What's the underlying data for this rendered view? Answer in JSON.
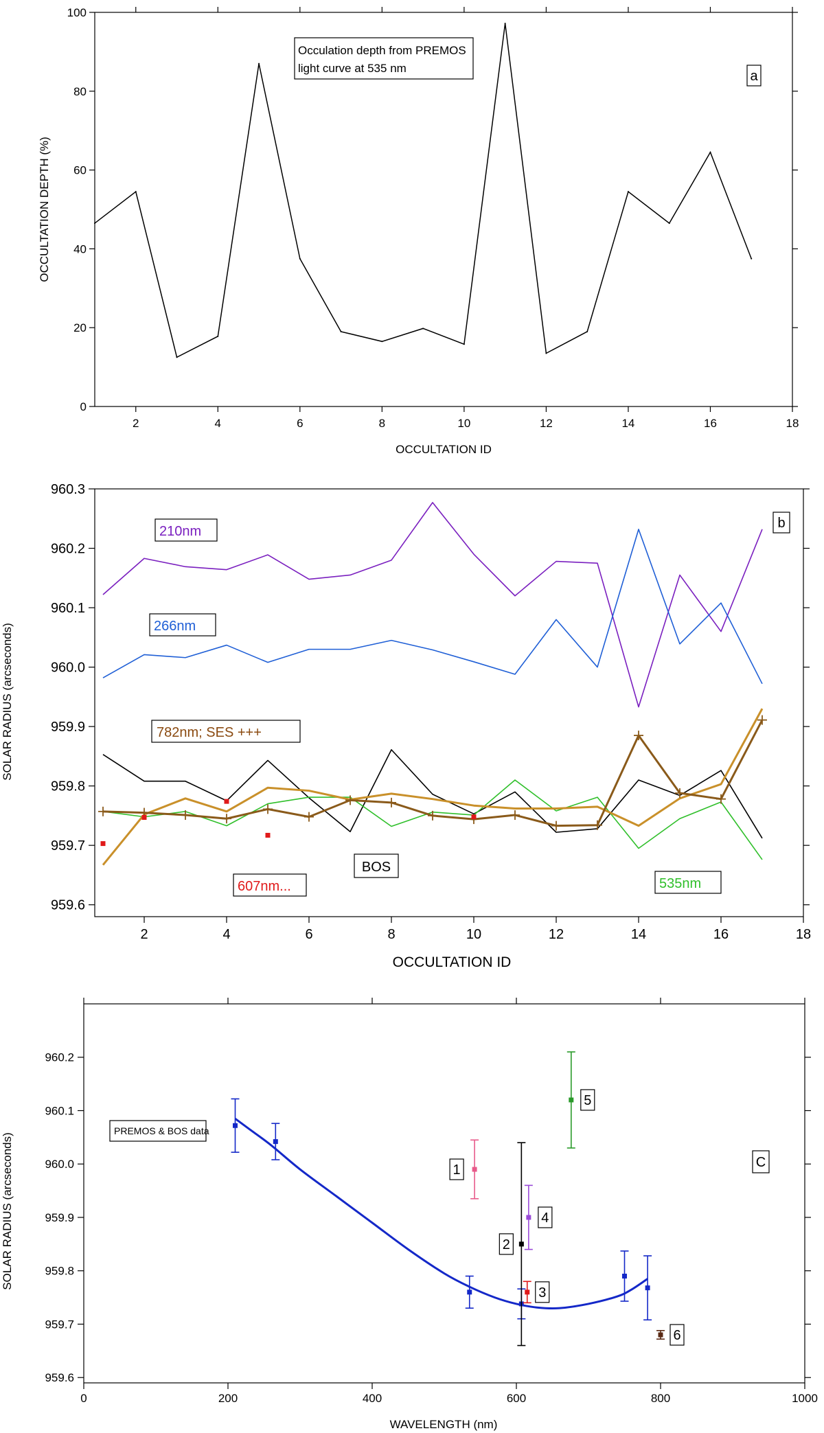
{
  "chart_data": [
    {
      "type": "line",
      "panel_label": "a",
      "annotation": [
        "Occulation depth from PREMOS",
        "light curve at 535 nm"
      ],
      "xlabel": "OCCULTATION ID",
      "ylabel": "OCCULTATION DEPTH (%)",
      "xlim": [
        1,
        18
      ],
      "ylim": [
        0,
        100
      ],
      "xticks": [
        "2",
        "4",
        "6",
        "8",
        "10",
        "12",
        "14",
        "16",
        "18"
      ],
      "yticks": [
        "0",
        "20",
        "40",
        "60",
        "80",
        "100"
      ],
      "x": [
        1,
        2,
        3,
        4,
        5,
        6,
        7,
        8,
        9,
        10,
        11,
        12,
        13,
        14,
        15,
        16,
        17
      ],
      "values": [
        46.5,
        54.5,
        12.5,
        17.8,
        87,
        37.5,
        19,
        16.5,
        19.8,
        15.8,
        97.2,
        13.5,
        19,
        54.5,
        46.5,
        64.5,
        37.5
      ],
      "color": "#000000"
    },
    {
      "type": "line",
      "panel_label": "b",
      "xlabel": "OCCULTATION ID",
      "ylabel": "SOLAR RADIUS (arcseconds)",
      "xlim": [
        0.8,
        18
      ],
      "ylim": [
        959.58,
        960.3
      ],
      "xticks": [
        "2",
        "4",
        "6",
        "8",
        "10",
        "12",
        "14",
        "16",
        "18"
      ],
      "yticks": [
        "959.6",
        "959.7",
        "959.8",
        "959.9",
        "960.0",
        "960.1",
        "960.2",
        "960.3"
      ],
      "x": [
        1,
        2,
        3,
        4,
        5,
        6,
        7,
        8,
        9,
        10,
        11,
        12,
        13,
        14,
        15,
        16,
        17
      ],
      "series": [
        {
          "name": "210nm",
          "color": "#7a1fbf",
          "width": 1.6,
          "values": [
            960.122,
            960.183,
            960.169,
            960.164,
            960.189,
            960.148,
            960.155,
            960.18,
            960.277,
            960.19,
            960.12,
            960.178,
            960.175,
            959.933,
            960.155,
            960.06,
            960.232
          ]
        },
        {
          "name": "266nm",
          "color": "#1f5fd6",
          "width": 1.6,
          "values": [
            959.982,
            960.021,
            960.016,
            960.037,
            960.008,
            960.03,
            960.03,
            960.045,
            960.029,
            960.009,
            959.988,
            960.08,
            960.0,
            960.232,
            960.039,
            960.108,
            959.972
          ]
        },
        {
          "name": "BOS",
          "color": "#000000",
          "width": 1.6,
          "values": [
            959.853,
            959.808,
            959.808,
            959.775,
            959.843,
            959.78,
            959.723,
            959.861,
            959.786,
            959.753,
            959.79,
            959.722,
            959.728,
            959.81,
            959.784,
            959.826,
            959.712
          ]
        },
        {
          "name": "535nm",
          "color": "#2fbf2a",
          "width": 1.6,
          "values": [
            959.757,
            959.748,
            959.757,
            959.733,
            959.77,
            959.781,
            959.781,
            959.732,
            959.756,
            959.751,
            959.81,
            959.758,
            959.781,
            959.695,
            959.745,
            959.773,
            959.676
          ]
        },
        {
          "name": "782nm",
          "color": "#c9902a",
          "width": 3,
          "values": [
            959.667,
            959.752,
            959.779,
            959.757,
            959.797,
            959.792,
            959.777,
            959.787,
            959.778,
            959.767,
            959.762,
            959.762,
            959.765,
            959.733,
            959.779,
            959.803,
            959.93
          ]
        },
        {
          "name": "SES +++",
          "color": "#8a5a1a",
          "width": 3,
          "marker": "+",
          "values": [
            959.757,
            959.755,
            959.751,
            959.745,
            959.761,
            959.748,
            959.776,
            959.772,
            959.75,
            959.744,
            959.751,
            959.733,
            959.734,
            959.885,
            959.788,
            959.778,
            959.911
          ]
        },
        {
          "name": "607nm",
          "color": "#e01a1a",
          "marker": "square",
          "x": [
            1,
            2,
            4,
            5,
            10
          ],
          "values": [
            959.703,
            959.747,
            959.774,
            959.717,
            959.748
          ]
        }
      ],
      "labels": [
        {
          "text": "210nm",
          "color": "#7a1fbf"
        },
        {
          "text": "266nm",
          "color": "#1f5fd6"
        },
        {
          "text": "782nm; SES +++",
          "color": "#8a4a10"
        },
        {
          "text": "BOS",
          "color": "#000000"
        },
        {
          "text": "607nm...",
          "color": "#e01a1a"
        },
        {
          "text": "535nm",
          "color": "#2fbf2a"
        },
        {
          "text": "b",
          "color": "#000000"
        }
      ]
    },
    {
      "type": "scatter",
      "panel_label": "C",
      "annotation": "PREMOS & BOS data",
      "xlabel": "WAVELENGTH (nm)",
      "ylabel": "SOLAR RADIUS (arcseconds)",
      "xlim": [
        0,
        1000
      ],
      "ylim": [
        959.59,
        960.3
      ],
      "xticks": [
        "0",
        "200",
        "400",
        "600",
        "800",
        "1000"
      ],
      "yticks": [
        "959.6",
        "959.7",
        "959.8",
        "959.9",
        "960.0",
        "960.1",
        "960.2"
      ],
      "fit_curve": {
        "color": "#1428c8",
        "x": [
          210,
          230,
          260,
          300,
          350,
          400,
          450,
          500,
          535,
          570,
          600,
          630,
          660,
          700,
          740,
          760,
          782
        ],
        "values": [
          960.085,
          960.065,
          960.035,
          959.99,
          959.94,
          959.89,
          959.84,
          959.795,
          959.77,
          959.75,
          959.738,
          959.731,
          959.73,
          959.738,
          959.752,
          959.765,
          959.785
        ]
      },
      "blue_points": [
        {
          "x": 210,
          "y": 960.072,
          "err": 0.05
        },
        {
          "x": 266,
          "y": 960.042,
          "err": 0.034
        },
        {
          "x": 535,
          "y": 959.76,
          "err": 0.03
        },
        {
          "x": 607,
          "y": 959.738,
          "err": 0.028
        },
        {
          "x": 750,
          "y": 959.79,
          "err": 0.047
        },
        {
          "x": 782,
          "y": 959.768,
          "err": 0.06
        }
      ],
      "labeled_points": [
        {
          "label": "1",
          "x": 542,
          "y": 959.99,
          "err": 0.055,
          "color": "#e85a8a"
        },
        {
          "label": "2",
          "x": 607,
          "y": 959.85,
          "err": 0.19,
          "color": "#000000"
        },
        {
          "label": "3",
          "x": 615,
          "y": 959.76,
          "err": 0.02,
          "color": "#e01a1a"
        },
        {
          "label": "4",
          "x": 617,
          "y": 959.9,
          "err": 0.06,
          "color": "#9a4ad8"
        },
        {
          "label": "5",
          "x": 676,
          "y": 960.12,
          "err": 0.09,
          "color": "#2a9a2a"
        },
        {
          "label": "6",
          "x": 800,
          "y": 959.68,
          "err": 0.008,
          "color": "#5a2a14"
        }
      ]
    }
  ]
}
